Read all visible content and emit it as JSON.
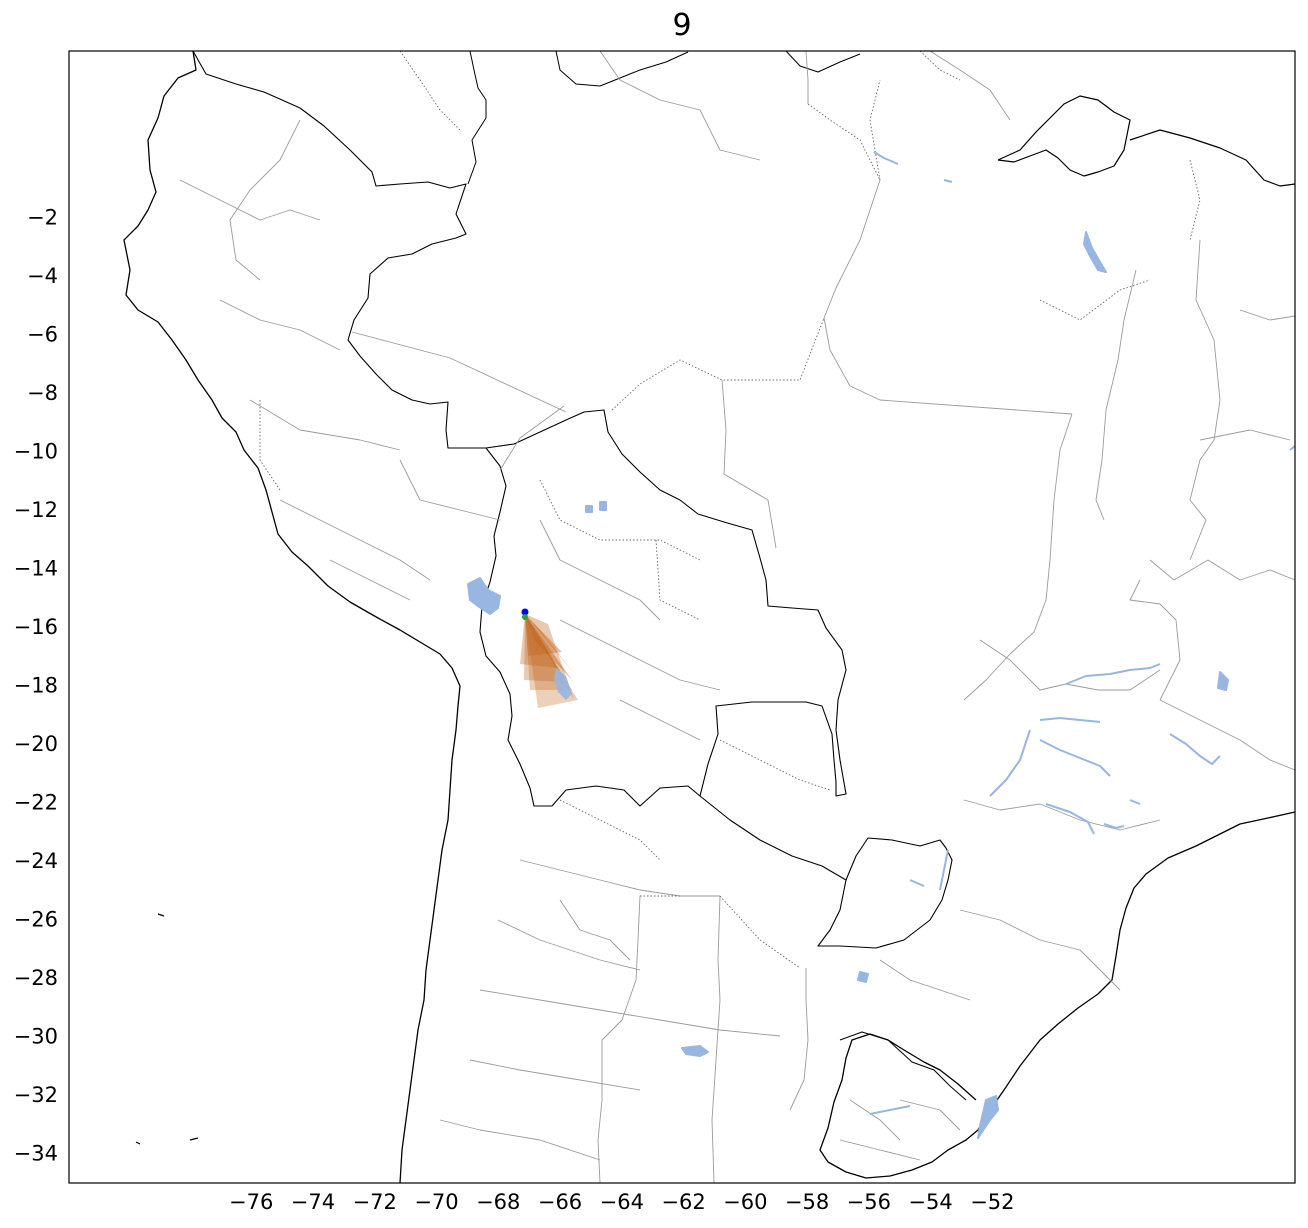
{
  "title": "9",
  "map": {
    "projection": "PlateCarree",
    "extent": {
      "lon_min": -81.9,
      "lon_max": -42.2,
      "lat_min": -35,
      "lat_max": 3.7
    },
    "x_ticks": [
      -76,
      -74,
      -72,
      -70,
      -68,
      -66,
      -64,
      -62,
      -60,
      -58,
      -56,
      -54,
      -52
    ],
    "y_ticks": [
      -2,
      -4,
      -6,
      -8,
      -10,
      -12,
      -14,
      -16,
      -18,
      -20,
      -22,
      -24,
      -26,
      -28,
      -30,
      -32,
      -34
    ],
    "colors": {
      "coastline": "#000000",
      "country_border": "#000000",
      "state_border": "#999999",
      "lakes_rivers": "#97b6e1",
      "swath": "#c0651c",
      "point_blue": "#0000ff",
      "point_green": "#2ca02c"
    },
    "swath_origin": {
      "lon": -68.0,
      "lat": -16.4
    }
  }
}
